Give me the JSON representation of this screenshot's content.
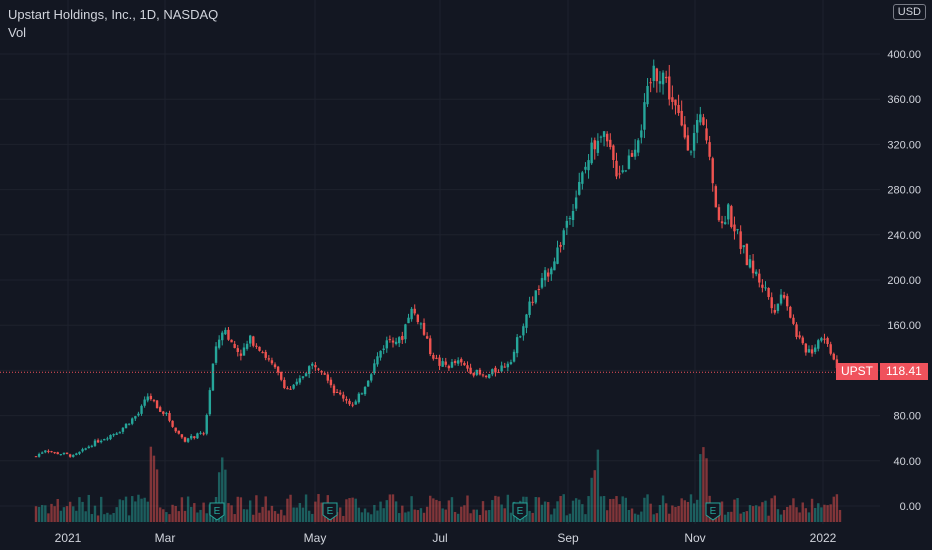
{
  "header": {
    "title": "Upstart Holdings, Inc., 1D, NASDAQ",
    "volume_label": "Vol",
    "currency": "USD"
  },
  "last_price": {
    "symbol": "UPST",
    "value": "118.41",
    "color": "#f0525c"
  },
  "colors": {
    "background": "#131722",
    "grid": "#1e222d",
    "up": "#26a69a",
    "down": "#ef5350",
    "text": "#d1d4dc"
  },
  "chart_data": {
    "type": "candlestick",
    "title": "Upstart Holdings, Inc., 1D, NASDAQ",
    "ylim": [
      -10,
      410
    ],
    "ytick_labels": [
      "0.00",
      "40.00",
      "80.00",
      "120.00",
      "160.00",
      "200.00",
      "240.00",
      "280.00",
      "320.00",
      "360.00",
      "400.00"
    ],
    "xtick_labels": [
      "2021",
      "Mar",
      "May",
      "Jul",
      "Sep",
      "Nov",
      "2022"
    ],
    "earnings_markers": [
      "E",
      "E",
      "E",
      "E"
    ],
    "price_path": [
      {
        "t": "Dec 17",
        "close": 44
      },
      {
        "t": "Dec 21",
        "close": 50
      },
      {
        "t": "Dec 28",
        "close": 47
      },
      {
        "t": "Jan 4",
        "close": 46
      },
      {
        "t": "Jan 6",
        "close": 44
      },
      {
        "t": "Jan 11",
        "close": 49
      },
      {
        "t": "Jan 15",
        "close": 55
      },
      {
        "t": "Jan 20",
        "close": 59
      },
      {
        "t": "Jan 25",
        "close": 63
      },
      {
        "t": "Jan 29",
        "close": 67
      },
      {
        "t": "Feb 3",
        "close": 75
      },
      {
        "t": "Feb 8",
        "close": 82
      },
      {
        "t": "Feb 11",
        "close": 98
      },
      {
        "t": "Feb 16",
        "close": 88
      },
      {
        "t": "Feb 19",
        "close": 80
      },
      {
        "t": "Feb 24",
        "close": 66
      },
      {
        "t": "Mar 1",
        "close": 58
      },
      {
        "t": "Mar 4",
        "close": 62
      },
      {
        "t": "Mar 9",
        "close": 64
      },
      {
        "t": "Mar 10",
        "close": 130
      },
      {
        "t": "Mar 11",
        "close": 160
      },
      {
        "t": "Mar 16",
        "close": 142
      },
      {
        "t": "Mar 19",
        "close": 135
      },
      {
        "t": "Mar 24",
        "close": 148
      },
      {
        "t": "Mar 29",
        "close": 140
      },
      {
        "t": "Apr 1",
        "close": 127
      },
      {
        "t": "Apr 7",
        "close": 115
      },
      {
        "t": "Apr 12",
        "close": 102
      },
      {
        "t": "Apr 16",
        "close": 108
      },
      {
        "t": "Apr 21",
        "close": 122
      },
      {
        "t": "Apr 26",
        "close": 126
      },
      {
        "t": "Apr 30",
        "close": 118
      },
      {
        "t": "May 5",
        "close": 100
      },
      {
        "t": "May 10",
        "close": 96
      },
      {
        "t": "May 13",
        "close": 88
      },
      {
        "t": "May 17",
        "close": 104
      },
      {
        "t": "May 20",
        "close": 122
      },
      {
        "t": "May 25",
        "close": 140
      },
      {
        "t": "May 28",
        "close": 150
      },
      {
        "t": "Jun 2",
        "close": 145
      },
      {
        "t": "Jun 4",
        "close": 175
      },
      {
        "t": "Jun 8",
        "close": 165
      },
      {
        "t": "Jun 11",
        "close": 140
      },
      {
        "t": "Jun 15",
        "close": 126
      },
      {
        "t": "Jun 22",
        "close": 124
      },
      {
        "t": "Jun 29",
        "close": 127
      },
      {
        "t": "Jul 6",
        "close": 123
      },
      {
        "t": "Jul 13",
        "close": 118
      },
      {
        "t": "Jul 20",
        "close": 113
      },
      {
        "t": "Jul 27",
        "close": 119
      },
      {
        "t": "Aug 3",
        "close": 124
      },
      {
        "t": "Aug 6",
        "close": 133
      },
      {
        "t": "Aug 10",
        "close": 160
      },
      {
        "t": "Aug 13",
        "close": 182
      },
      {
        "t": "Aug 20",
        "close": 195
      },
      {
        "t": "Aug 27",
        "close": 212
      },
      {
        "t": "Sep 3",
        "close": 230
      },
      {
        "t": "Sep 10",
        "close": 260
      },
      {
        "t": "Sep 14",
        "close": 280
      },
      {
        "t": "Sep 17",
        "close": 305
      },
      {
        "t": "Sep 22",
        "close": 330
      },
      {
        "t": "Sep 28",
        "close": 320
      },
      {
        "t": "Oct 1",
        "close": 298
      },
      {
        "t": "Oct 6",
        "close": 300
      },
      {
        "t": "Oct 11",
        "close": 320
      },
      {
        "t": "Oct 14",
        "close": 345
      },
      {
        "t": "Oct 15",
        "close": 385
      },
      {
        "t": "Oct 18",
        "close": 385
      },
      {
        "t": "Oct 21",
        "close": 360
      },
      {
        "t": "Oct 26",
        "close": 335
      },
      {
        "t": "Oct 29",
        "close": 320
      },
      {
        "t": "Nov 3",
        "close": 338
      },
      {
        "t": "Nov 5",
        "close": 320
      },
      {
        "t": "Nov 9",
        "close": 245
      },
      {
        "t": "Nov 12",
        "close": 262
      },
      {
        "t": "Nov 17",
        "close": 240
      },
      {
        "t": "Nov 22",
        "close": 218
      },
      {
        "t": "Nov 26",
        "close": 205
      },
      {
        "t": "Nov 30",
        "close": 192
      },
      {
        "t": "Dec 3",
        "close": 175
      },
      {
        "t": "Dec 8",
        "close": 190
      },
      {
        "t": "Dec 13",
        "close": 160
      },
      {
        "t": "Dec 17",
        "close": 140
      },
      {
        "t": "Dec 22",
        "close": 138
      },
      {
        "t": "Dec 28",
        "close": 152
      },
      {
        "t": "Jan 3",
        "close": 138
      },
      {
        "t": "Jan 6",
        "close": 118.41
      }
    ]
  }
}
